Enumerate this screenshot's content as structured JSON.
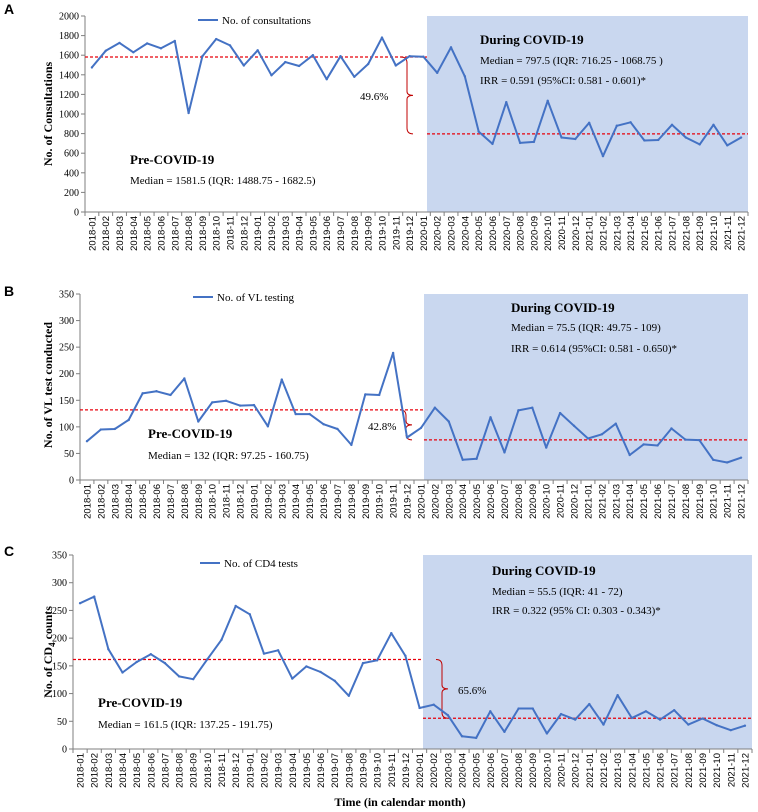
{
  "colors": {
    "line": "#4472C4",
    "shade": "#C9D7EF",
    "median": "#E8000B",
    "brace": "#C00000",
    "axis": "#7F7F7F"
  },
  "months": [
    "2018-01",
    "2018-02",
    "2018-03",
    "2018-04",
    "2018-05",
    "2018-06",
    "2018-07",
    "2018-08",
    "2018-09",
    "2018-10",
    "2018-11",
    "2018-12",
    "2019-01",
    "2019-02",
    "2019-03",
    "2019-04",
    "2019-05",
    "2019-06",
    "2019-07",
    "2019-08",
    "2019-09",
    "2019-10",
    "2019-11",
    "2019-12",
    "2020-01",
    "2020-02",
    "2020-03",
    "2020-04",
    "2020-05",
    "2020-06",
    "2020-07",
    "2020-08",
    "2020-09",
    "2020-10",
    "2020-11",
    "2020-12",
    "2021-01",
    "2021-02",
    "2021-03",
    "2021-04",
    "2021-05",
    "2021-06",
    "2021-07",
    "2021-08",
    "2021-09",
    "2021-10",
    "2021-11",
    "2021-12"
  ],
  "xaxis_title": "Time (in calendar month)",
  "chart_data": [
    {
      "panel": "A",
      "type": "line",
      "ylabel": "No. of Consultations",
      "ylim": [
        0,
        2000
      ],
      "yticks": [
        0,
        200,
        400,
        600,
        800,
        1000,
        1200,
        1400,
        1600,
        1800,
        2000
      ],
      "legend": "No. of consultations",
      "values": [
        1475,
        1645,
        1725,
        1630,
        1720,
        1670,
        1745,
        1010,
        1590,
        1765,
        1700,
        1495,
        1650,
        1395,
        1530,
        1490,
        1600,
        1355,
        1590,
        1380,
        1510,
        1780,
        1495,
        1590,
        1585,
        1420,
        1680,
        1385,
        820,
        695,
        1120,
        705,
        715,
        1135,
        760,
        745,
        910,
        570,
        880,
        915,
        730,
        735,
        890,
        760,
        690,
        890,
        680,
        760
      ],
      "pre_median_value": 1581.5,
      "post_median_value": 797.5,
      "pre_label": "Pre-COVID-19",
      "pre_stats": "Median = 1581.5 (IQR: 1488.75 - 1682.5)",
      "post_label": "During COVID-19",
      "post_median": "Median = 797.5 (IQR: 716.25 - 1068.75 )",
      "post_irr": "IRR = 0.591  (95%CI: 0.581 - 0.601)*",
      "pct": "49.6%"
    },
    {
      "panel": "B",
      "type": "line",
      "ylabel": "No. of VL test conducted",
      "ylim": [
        0,
        350
      ],
      "yticks": [
        0,
        50,
        100,
        150,
        200,
        250,
        300,
        350
      ],
      "legend": "No. of VL testing",
      "values": [
        73,
        95,
        96,
        113,
        163,
        167,
        160,
        191,
        110,
        146,
        149,
        140,
        141,
        101,
        189,
        124,
        124,
        105,
        96,
        66,
        161,
        160,
        239,
        80,
        98,
        136,
        110,
        38,
        40,
        118,
        52,
        131,
        136,
        61,
        126,
        102,
        78,
        86,
        106,
        47,
        67,
        65,
        97,
        76,
        75,
        38,
        33,
        42
      ],
      "pre_median_value": 132,
      "post_median_value": 75.5,
      "pre_label": "Pre-COVID-19",
      "pre_stats": "Median = 132 (IQR: 97.25 - 160.75)",
      "post_label": "During COVID-19",
      "post_median": "Median = 75.5 (IQR: 49.75 - 109)",
      "post_irr": "IRR = 0.614 (95%CI: 0.581 - 0.650)*",
      "pct": "42.8%"
    },
    {
      "panel": "C",
      "type": "line",
      "ylabel_prefix": "No. of CD",
      "ylabel_sub": "4",
      "ylabel_suffix": " counts",
      "ylim": [
        0,
        350
      ],
      "yticks": [
        0,
        50,
        100,
        150,
        200,
        250,
        300,
        350
      ],
      "legend": "No. of CD4 tests",
      "values": [
        263,
        275,
        180,
        138,
        157,
        171,
        155,
        131,
        126,
        162,
        197,
        258,
        243,
        172,
        178,
        127,
        149,
        139,
        123,
        96,
        155,
        160,
        209,
        168,
        74,
        80,
        61,
        23,
        20,
        68,
        31,
        73,
        73,
        28,
        63,
        53,
        81,
        44,
        97,
        56,
        68,
        53,
        70,
        44,
        55,
        43,
        34,
        42
      ],
      "pre_median_value": 161.5,
      "post_median_value": 55.5,
      "pre_label": "Pre-COVID-19",
      "pre_stats": "Median = 161.5 (IQR: 137.25 - 191.75)",
      "post_label": "During COVID-19",
      "post_median": "Median = 55.5 (IQR: 41 - 72)",
      "post_irr": "IRR =  0.322  (95% CI:  0.303 - 0.343)*",
      "pct": "65.6%"
    }
  ]
}
